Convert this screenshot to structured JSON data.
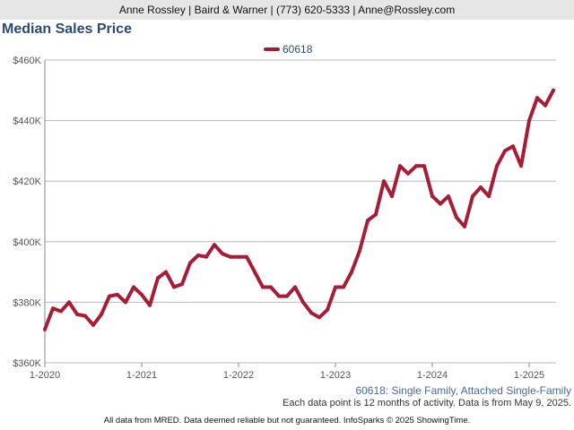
{
  "header": {
    "contact": "Anne Rossley | Baird & Warner | (773) 620-5333 | Anne@Rossley.com"
  },
  "captions": {
    "description": "60618: Single Family, Attached Single-Family",
    "note": "Each data point is 12 months of activity. Data is from May 9, 2025.",
    "footer": "All data from MRED. Data deemed reliable but not guaranteed. InfoSparks © 2025 ShowingTime."
  },
  "colors": {
    "series": "#a51d36",
    "title": "#2a4a72",
    "grid": "#b8b8b8"
  },
  "chart_data": {
    "type": "line",
    "title": "Median Sales Price",
    "legend_position": "top-center",
    "grid": true,
    "x_start": "2020-01",
    "x_tick_labels": [
      "1-2020",
      "1-2021",
      "1-2022",
      "1-2023",
      "1-2024",
      "1-2025"
    ],
    "y_tick_labels": [
      "$360K",
      "$380K",
      "$400K",
      "$420K",
      "$440K",
      "$460K"
    ],
    "ylim": [
      360000,
      460000
    ],
    "y_ticks": [
      360000,
      380000,
      400000,
      420000,
      440000,
      460000
    ],
    "series": [
      {
        "name": "60618",
        "values": [
          371000,
          378000,
          377000,
          380000,
          376000,
          375500,
          372500,
          376000,
          382000,
          382500,
          380000,
          385000,
          382500,
          379000,
          388000,
          390000,
          385000,
          386000,
          393000,
          395500,
          395000,
          399000,
          396000,
          395000,
          395000,
          395000,
          390000,
          385000,
          385000,
          382000,
          382000,
          385000,
          380000,
          376500,
          375000,
          377500,
          385000,
          385000,
          390000,
          397000,
          407000,
          409000,
          420000,
          415000,
          425000,
          422500,
          425000,
          425000,
          415000,
          412500,
          415000,
          408000,
          405000,
          415000,
          418000,
          415000,
          425000,
          430000,
          431500,
          425000,
          440000,
          447500,
          445000,
          450000
        ]
      }
    ]
  }
}
